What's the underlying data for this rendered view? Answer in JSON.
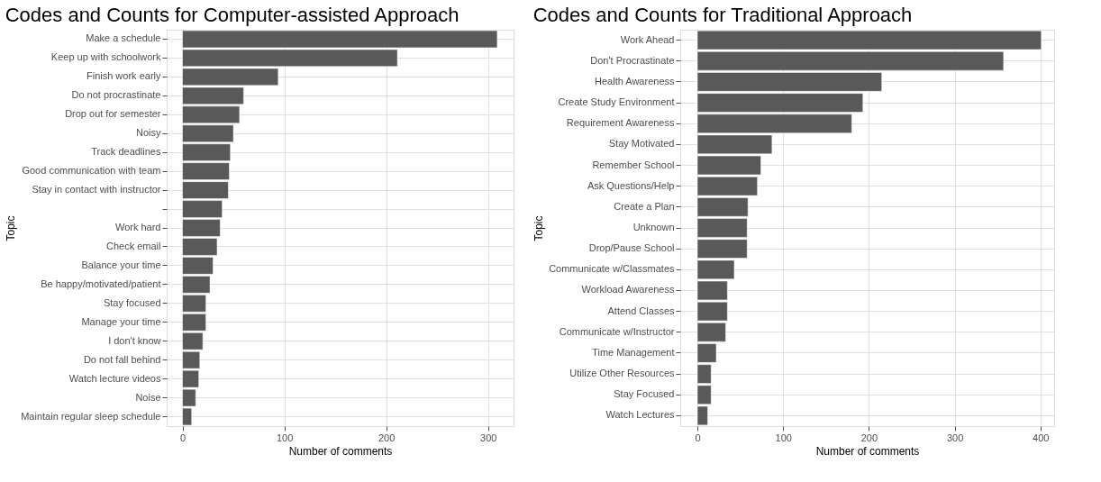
{
  "chart_data": [
    {
      "type": "bar",
      "orientation": "horizontal",
      "title": "Codes and Counts for Computer-assisted Approach",
      "xlabel": "Number of comments",
      "ylabel": "Topic",
      "categories": [
        "Make a schedule",
        "Keep up with schoolwork",
        "Finish work early",
        "Do not procrastinate",
        "Drop out for semester",
        "Noisy",
        "Track deadlines",
        "Good communication with team",
        "Stay in contact with instructor",
        null,
        "Work hard",
        "Check email",
        "Balance your time",
        "Be happy/motivated/patient",
        "Stay focused",
        "Manage your time",
        "I don't know",
        "Do not fall behind",
        "Watch lecture videos",
        "Noise",
        "Maintain regular sleep schedule"
      ],
      "values": [
        309,
        211,
        94,
        60,
        56,
        50,
        47,
        46,
        45,
        39,
        37,
        34,
        30,
        27,
        23,
        23,
        20,
        17,
        16,
        13,
        9
      ],
      "color": "#595959",
      "xlim": [
        -15.5,
        325
      ],
      "xticks": [
        0,
        100,
        200,
        300
      ],
      "grid": true
    },
    {
      "type": "bar",
      "orientation": "horizontal",
      "title": "Codes and Counts for Traditional Approach",
      "xlabel": "Number of comments",
      "ylabel": "Topic",
      "categories": [
        "Work Ahead",
        "Don't Procrastinate",
        "Health Awareness",
        "Create Study Environment",
        "Requirement Awareness",
        "Stay Motivated",
        "Remember School",
        "Ask Questions/Help",
        "Create a Plan",
        "Unknown",
        "Drop/Pause School",
        "Communicate w/Classmates",
        "Workload Awareness",
        "Attend Classes",
        "Communicate w/Instructor",
        "Time Management",
        "Utilize Other Resources",
        "Stay Focused",
        "Watch Lectures"
      ],
      "values": [
        401,
        357,
        215,
        193,
        180,
        87,
        74,
        70,
        59,
        58,
        58,
        43,
        35,
        35,
        33,
        22,
        16,
        16,
        12
      ],
      "color": "#595959",
      "xlim": [
        -20,
        416
      ],
      "xticks": [
        0,
        100,
        200,
        300,
        400
      ],
      "grid": true
    }
  ]
}
